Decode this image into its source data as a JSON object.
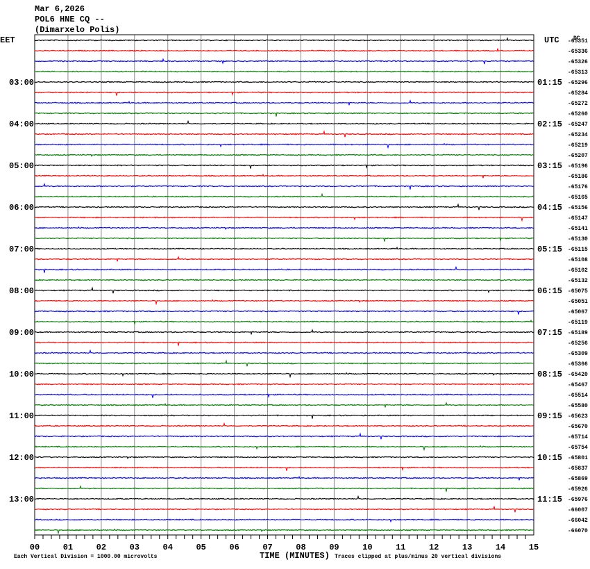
{
  "header": {
    "date": "Mar 6,2026",
    "station": "POL6 HNE CQ --",
    "location": "(Dimarxelo Polis)"
  },
  "chart_data": {
    "type": "helicorder",
    "left_axis_label": "EET",
    "right_axis_label": "UTC",
    "dc_label": "DC",
    "left_hour_labels": [
      "03:00",
      "04:00",
      "05:00",
      "06:00",
      "07:00",
      "08:00",
      "09:00",
      "10:00",
      "11:00",
      "12:00",
      "13:00"
    ],
    "right_hour_labels": [
      "01:15",
      "02:15",
      "03:15",
      "04:15",
      "05:15",
      "06:15",
      "07:15",
      "08:15",
      "09:15",
      "10:15",
      "11:15"
    ],
    "dc_values": [
      -65351,
      -65336,
      -65326,
      -65313,
      -65296,
      -65284,
      -65272,
      -65260,
      -65247,
      -65234,
      -65219,
      -65207,
      -65196,
      -65186,
      -65176,
      -65165,
      -65156,
      -65147,
      -65141,
      -65130,
      -65115,
      -65108,
      -65102,
      -65132,
      -65075,
      -65051,
      -65067,
      -65119,
      -65189,
      -65256,
      -65309,
      -65366,
      -65420,
      -65467,
      -65514,
      -65580,
      -65623,
      -65670,
      -65714,
      -65754,
      -65801,
      -65837,
      -65869,
      -65926,
      -65976,
      -66007,
      -66042,
      -66070
    ],
    "colors": [
      "#000000",
      "#ff0000",
      "#0000ff",
      "#008000"
    ],
    "xlim": [
      0,
      15
    ],
    "xticks": [
      {
        "value": 0,
        "label": "00"
      },
      {
        "value": 1,
        "label": "01"
      },
      {
        "value": 2,
        "label": "02"
      },
      {
        "value": 3,
        "label": "03"
      },
      {
        "value": 4,
        "label": "04"
      },
      {
        "value": 5,
        "label": "05"
      },
      {
        "value": 6,
        "label": "06"
      },
      {
        "value": 7,
        "label": "07"
      },
      {
        "value": 8,
        "label": "08"
      },
      {
        "value": 9,
        "label": "09"
      },
      10,
      11,
      12,
      13,
      14,
      15
    ],
    "xlabel": "TIME (MINUTES)",
    "scale_note": "Each Vertical Division = 1000.00 microvolts",
    "clip_note": "Traces clipped at plus/minus 20 vertical divisions"
  }
}
